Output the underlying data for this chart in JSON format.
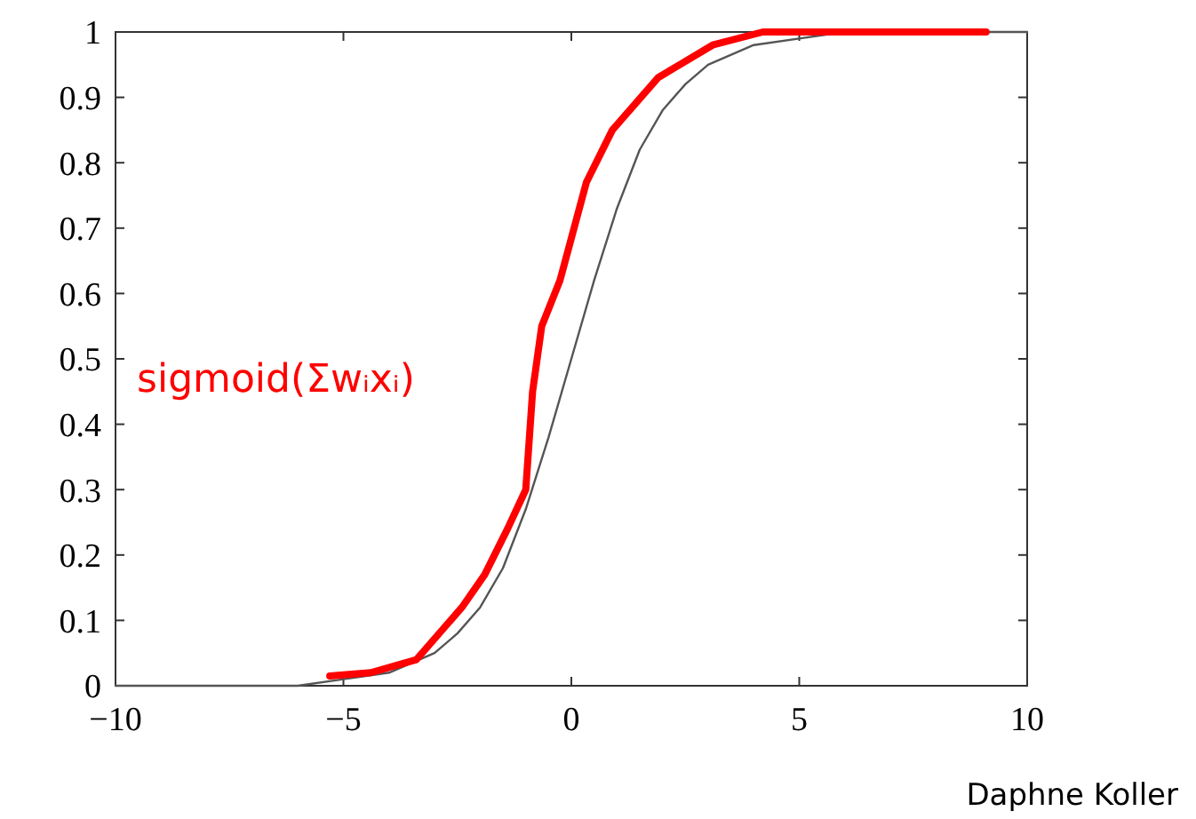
{
  "chart_data": {
    "type": "line",
    "xlim": [
      -10,
      10
    ],
    "ylim": [
      0,
      1
    ],
    "xticks": [
      -10,
      -5,
      0,
      5,
      10
    ],
    "yticks": [
      0,
      0.1,
      0.2,
      0.3,
      0.4,
      0.5,
      0.6,
      0.7,
      0.8,
      0.9,
      1
    ],
    "grid": false,
    "annotations": [
      "sigmoid(Σwᵢxᵢ)",
      "Daphne Koller"
    ],
    "series": [
      {
        "color": "#555555",
        "x": [
          -10,
          -8,
          -6,
          -5,
          -4,
          -3,
          -2.5,
          -2,
          -1.5,
          -1,
          -0.5,
          0,
          0.5,
          1,
          1.5,
          2,
          2.5,
          3,
          4,
          5,
          6,
          8,
          10
        ],
        "values": [
          0,
          0,
          0,
          0.01,
          0.02,
          0.05,
          0.08,
          0.12,
          0.18,
          0.27,
          0.38,
          0.5,
          0.62,
          0.73,
          0.82,
          0.88,
          0.92,
          0.95,
          0.98,
          0.99,
          1,
          1,
          1
        ]
      },
      {
        "color": "#ff0000",
        "x": [
          -5.3,
          -4.4,
          -3.4,
          -2.4,
          -1.9,
          -1.4,
          -1,
          -0.85,
          -0.65,
          -0.25,
          0.33,
          0.9,
          1.9,
          3.1,
          4.2,
          5.4,
          7,
          9.1
        ],
        "values": [
          0.015,
          0.02,
          0.04,
          0.12,
          0.17,
          0.24,
          0.3,
          0.45,
          0.55,
          0.62,
          0.77,
          0.85,
          0.93,
          0.98,
          1,
          1,
          1,
          1
        ]
      }
    ]
  }
}
